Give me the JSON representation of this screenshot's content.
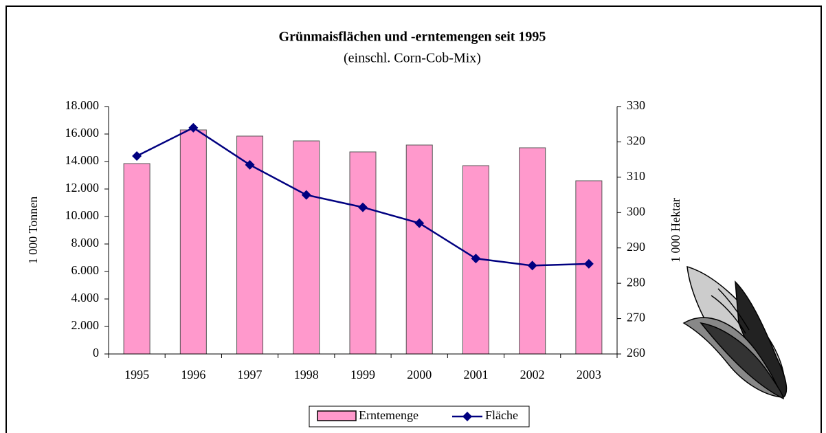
{
  "chart_data": {
    "type": "combo",
    "title": "Grünmaisflächen und -erntemengen seit 1995",
    "subtitle": "(einschl. Corn-Cob-Mix)",
    "y_label": "1 000 Tonnen",
    "y2_label": "1 000 Hektar",
    "categories": [
      "1995",
      "1996",
      "1997",
      "1998",
      "1999",
      "2000",
      "2001",
      "2002",
      "2003"
    ],
    "series": [
      {
        "name": "Erntemenge",
        "type": "bar",
        "color": "#ff99cc",
        "values": [
          13850,
          16300,
          15850,
          15500,
          14700,
          15200,
          13700,
          15000,
          12600
        ]
      },
      {
        "name": "Fläche",
        "type": "line",
        "color": "#000080",
        "axis": "y2",
        "values": [
          316,
          324,
          313.5,
          305,
          301.5,
          297,
          287,
          285,
          285.5
        ]
      }
    ],
    "ylim": [
      0,
      18000
    ],
    "yticks": [
      0,
      {
        "value": 2000,
        "label": "2.000"
      },
      {
        "value": 4000,
        "label": "4.000"
      },
      {
        "value": 6000,
        "label": "6.000"
      },
      {
        "value": 8000,
        "label": "8.000"
      },
      {
        "value": 10000,
        "label": "10.000"
      },
      {
        "value": 12000,
        "label": "12.000"
      },
      {
        "value": 14000,
        "label": "14.000"
      },
      {
        "value": 16000,
        "label": "16.000"
      },
      {
        "value": 18000,
        "label": "18.000"
      }
    ],
    "y2lim": [
      260,
      330
    ],
    "y2ticks": [
      260,
      270,
      280,
      290,
      300,
      310,
      320,
      330
    ],
    "legend": "bottom"
  }
}
